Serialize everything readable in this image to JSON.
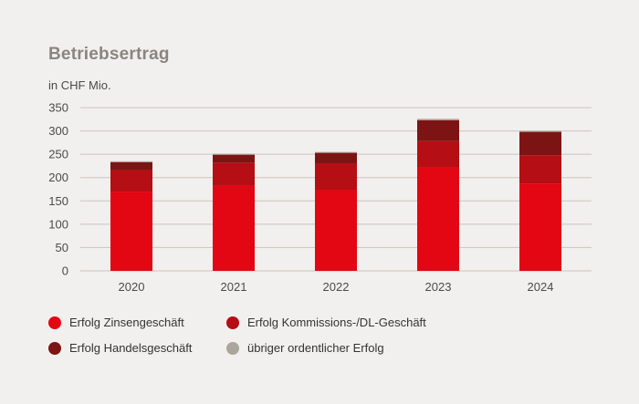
{
  "title": "Betriebsertrag",
  "unit_label": "in CHF Mio.",
  "colors": {
    "zins": "#e30613",
    "kommission": "#b50e14",
    "handel": "#7d1414",
    "uebriger": "#aaa69c",
    "grid": "#c9c4bf",
    "tick_text": "#4a4a4a"
  },
  "chart_data": {
    "type": "bar",
    "stacked": true,
    "categories": [
      "2020",
      "2021",
      "2022",
      "2023",
      "2024"
    ],
    "series": [
      {
        "name": "Erfolg Zinsengeschäft",
        "values": [
          170,
          182,
          174,
          222,
          187
        ]
      },
      {
        "name": "Erfolg Kommissions-/DL-Geschäft",
        "values": [
          46,
          50,
          55,
          56,
          61
        ]
      },
      {
        "name": "Erfolg Handelsgeschäft",
        "values": [
          17,
          17,
          24,
          45,
          50
        ]
      },
      {
        "name": "übriger ordentlicher Erfolg",
        "values": [
          2,
          2,
          2,
          3,
          2
        ]
      }
    ],
    "yticks": [
      0,
      50,
      100,
      150,
      200,
      250,
      300,
      350
    ],
    "ylim": [
      0,
      350
    ],
    "grid": true,
    "legend_position": "bottom"
  }
}
